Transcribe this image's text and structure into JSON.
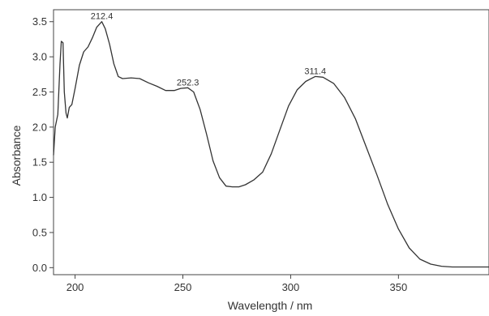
{
  "chart_data": {
    "type": "line",
    "title": "",
    "xlabel": "Wavelength / nm",
    "ylabel": "Absorbance",
    "xlim": [
      190,
      392
    ],
    "ylim": [
      -0.1,
      3.67
    ],
    "xticks": [
      200,
      250,
      300,
      350
    ],
    "yticks": [
      0.0,
      0.5,
      1.0,
      1.5,
      2.0,
      2.5,
      3.0,
      3.5
    ],
    "xtick_labels": [
      "200",
      "250",
      "300",
      "350"
    ],
    "ytick_labels": [
      "0.0",
      "0.5",
      "1.0",
      "1.5",
      "2.0",
      "2.5",
      "3.0",
      "3.5"
    ],
    "grid": false,
    "series": [
      {
        "color": "#333333",
        "points": [
          [
            190,
            1.6
          ],
          [
            190.8,
            2.0
          ],
          [
            192,
            2.18
          ],
          [
            193,
            2.9
          ],
          [
            193.6,
            3.22
          ],
          [
            194.4,
            3.2
          ],
          [
            195,
            2.5
          ],
          [
            195.8,
            2.2
          ],
          [
            196.4,
            2.13
          ],
          [
            197.3,
            2.28
          ],
          [
            198.5,
            2.32
          ],
          [
            200,
            2.55
          ],
          [
            202,
            2.88
          ],
          [
            204,
            3.07
          ],
          [
            206,
            3.14
          ],
          [
            208,
            3.27
          ],
          [
            210,
            3.42
          ],
          [
            212.4,
            3.5
          ],
          [
            214,
            3.4
          ],
          [
            216,
            3.18
          ],
          [
            218,
            2.9
          ],
          [
            220,
            2.72
          ],
          [
            222,
            2.69
          ],
          [
            226,
            2.7
          ],
          [
            230,
            2.69
          ],
          [
            234,
            2.63
          ],
          [
            238,
            2.58
          ],
          [
            242,
            2.52
          ],
          [
            246,
            2.52
          ],
          [
            249,
            2.55
          ],
          [
            252.3,
            2.56
          ],
          [
            255,
            2.5
          ],
          [
            258,
            2.25
          ],
          [
            261,
            1.9
          ],
          [
            264,
            1.52
          ],
          [
            267,
            1.28
          ],
          [
            270,
            1.16
          ],
          [
            273,
            1.15
          ],
          [
            276,
            1.15
          ],
          [
            279,
            1.18
          ],
          [
            283,
            1.25
          ],
          [
            287,
            1.36
          ],
          [
            291,
            1.62
          ],
          [
            295,
            1.96
          ],
          [
            299,
            2.3
          ],
          [
            303,
            2.53
          ],
          [
            307,
            2.65
          ],
          [
            311.4,
            2.72
          ],
          [
            315,
            2.71
          ],
          [
            320,
            2.62
          ],
          [
            325,
            2.42
          ],
          [
            330,
            2.12
          ],
          [
            335,
            1.72
          ],
          [
            340,
            1.32
          ],
          [
            345,
            0.9
          ],
          [
            350,
            0.55
          ],
          [
            355,
            0.28
          ],
          [
            360,
            0.12
          ],
          [
            365,
            0.05
          ],
          [
            370,
            0.02
          ],
          [
            375,
            0.01
          ],
          [
            380,
            0.01
          ],
          [
            392,
            0.01
          ]
        ]
      }
    ],
    "annotations": [
      {
        "label": "212.4",
        "x": 212.4,
        "y": 3.5
      },
      {
        "label": "252.3",
        "x": 252.3,
        "y": 2.56
      },
      {
        "label": "311.4",
        "x": 311.4,
        "y": 2.72
      }
    ]
  }
}
